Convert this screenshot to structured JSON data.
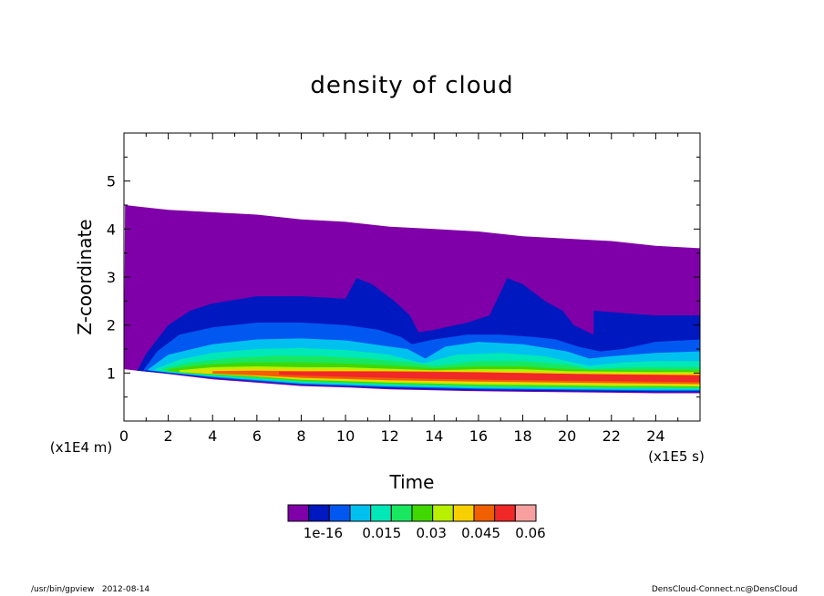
{
  "chart_data": {
    "type": "area",
    "title": "density of cloud",
    "xlabel": "Time",
    "ylabel": "Z-coordinate",
    "x_unit": "(x1E5 s)",
    "y_unit": "(x1E4 m)",
    "xlim": [
      0,
      26
    ],
    "ylim": [
      0,
      6
    ],
    "x_ticks": [
      0,
      2,
      4,
      6,
      8,
      10,
      12,
      14,
      16,
      18,
      20,
      22,
      24
    ],
    "y_ticks": [
      1,
      2,
      3,
      4,
      5
    ],
    "colorbar": {
      "colors": [
        "#7f00a8",
        "#0018c0",
        "#0058f0",
        "#00c0f0",
        "#00e8b8",
        "#18e860",
        "#40d800",
        "#b8f000",
        "#f8d000",
        "#f06000",
        "#f02828",
        "#f8a0a0"
      ],
      "labels": [
        "1e-16",
        "0.015",
        "0.03",
        "0.045",
        "0.06"
      ]
    },
    "bands": [
      {
        "level": 0,
        "top": [
          [
            0.0,
            1.08
          ],
          [
            0.05,
            4.5
          ],
          [
            1.0,
            4.45
          ],
          [
            2.0,
            4.4
          ],
          [
            4.0,
            4.35
          ],
          [
            6.0,
            4.3
          ],
          [
            8.0,
            4.2
          ],
          [
            10.0,
            4.15
          ],
          [
            12.0,
            4.05
          ],
          [
            14.0,
            4.0
          ],
          [
            16.0,
            3.95
          ],
          [
            18.0,
            3.85
          ],
          [
            20.0,
            3.8
          ],
          [
            22.0,
            3.75
          ],
          [
            24.0,
            3.65
          ],
          [
            26.0,
            3.6
          ]
        ],
        "bottom": [
          [
            0.6,
            1.05
          ],
          [
            2.0,
            0.98
          ],
          [
            4.0,
            0.87
          ],
          [
            6.0,
            0.8
          ],
          [
            8.0,
            0.73
          ],
          [
            10.0,
            0.7
          ],
          [
            12.0,
            0.66
          ],
          [
            14.0,
            0.64
          ],
          [
            16.0,
            0.62
          ],
          [
            18.0,
            0.61
          ],
          [
            20.0,
            0.6
          ],
          [
            22.0,
            0.59
          ],
          [
            24.0,
            0.58
          ],
          [
            26.0,
            0.58
          ]
        ]
      },
      {
        "level": 1,
        "top": [
          [
            0.6,
            1.05
          ],
          [
            1.0,
            1.4
          ],
          [
            2.0,
            2.0
          ],
          [
            3.0,
            2.3
          ],
          [
            4.0,
            2.45
          ],
          [
            6.0,
            2.6
          ],
          [
            8.0,
            2.6
          ],
          [
            10.0,
            2.55
          ],
          [
            10.5,
            2.98
          ],
          [
            11.2,
            2.85
          ],
          [
            12.2,
            2.5
          ],
          [
            12.9,
            2.2
          ],
          [
            13.3,
            1.85
          ],
          [
            14.0,
            1.9
          ],
          [
            15.5,
            2.05
          ],
          [
            16.5,
            2.2
          ],
          [
            17.3,
            2.98
          ],
          [
            18.0,
            2.85
          ],
          [
            19.0,
            2.5
          ],
          [
            19.8,
            2.3
          ],
          [
            20.3,
            2.0
          ],
          [
            21.2,
            1.8
          ],
          [
            21.2,
            2.3
          ],
          [
            22.5,
            2.25
          ],
          [
            24.0,
            2.2
          ],
          [
            26.0,
            2.2
          ]
        ],
        "bottom": [
          [
            0.6,
            1.05
          ],
          [
            2.0,
            0.99
          ],
          [
            4.0,
            0.89
          ],
          [
            6.0,
            0.82
          ],
          [
            8.0,
            0.75
          ],
          [
            10.0,
            0.72
          ],
          [
            12.0,
            0.68
          ],
          [
            14.0,
            0.66
          ],
          [
            16.0,
            0.64
          ],
          [
            18.0,
            0.63
          ],
          [
            20.0,
            0.62
          ],
          [
            22.0,
            0.61
          ],
          [
            24.0,
            0.6
          ],
          [
            26.0,
            0.6
          ]
        ]
      },
      {
        "level": 2,
        "top": [
          [
            0.9,
            1.08
          ],
          [
            1.5,
            1.45
          ],
          [
            2.5,
            1.8
          ],
          [
            4.0,
            1.95
          ],
          [
            6.0,
            2.05
          ],
          [
            8.0,
            2.05
          ],
          [
            10.0,
            2.0
          ],
          [
            11.5,
            1.9
          ],
          [
            12.5,
            1.75
          ],
          [
            13.0,
            1.6
          ],
          [
            14.0,
            1.7
          ],
          [
            15.5,
            1.8
          ],
          [
            17.0,
            1.8
          ],
          [
            18.5,
            1.75
          ],
          [
            19.5,
            1.7
          ],
          [
            20.5,
            1.55
          ],
          [
            21.5,
            1.45
          ],
          [
            22.5,
            1.5
          ],
          [
            24.0,
            1.65
          ],
          [
            26.0,
            1.7
          ]
        ],
        "bottom": [
          [
            0.9,
            1.06
          ],
          [
            2.0,
            1.0
          ],
          [
            4.0,
            0.9
          ],
          [
            6.0,
            0.83
          ],
          [
            8.0,
            0.76
          ],
          [
            10.0,
            0.73
          ],
          [
            12.0,
            0.7
          ],
          [
            14.0,
            0.68
          ],
          [
            16.0,
            0.66
          ],
          [
            18.0,
            0.65
          ],
          [
            20.0,
            0.64
          ],
          [
            22.0,
            0.63
          ],
          [
            24.0,
            0.62
          ],
          [
            26.0,
            0.62
          ]
        ]
      },
      {
        "level": 3,
        "top": [
          [
            1.1,
            1.08
          ],
          [
            2.0,
            1.38
          ],
          [
            4.0,
            1.6
          ],
          [
            6.0,
            1.7
          ],
          [
            8.0,
            1.72
          ],
          [
            10.0,
            1.68
          ],
          [
            12.0,
            1.55
          ],
          [
            12.8,
            1.5
          ],
          [
            13.6,
            1.3
          ],
          [
            14.5,
            1.55
          ],
          [
            16.0,
            1.65
          ],
          [
            18.0,
            1.6
          ],
          [
            20.0,
            1.45
          ],
          [
            21.0,
            1.3
          ],
          [
            22.0,
            1.35
          ],
          [
            24.0,
            1.42
          ],
          [
            26.0,
            1.45
          ]
        ],
        "bottom": [
          [
            1.1,
            1.06
          ],
          [
            2.0,
            1.01
          ],
          [
            4.0,
            0.92
          ],
          [
            6.0,
            0.85
          ],
          [
            8.0,
            0.78
          ],
          [
            10.0,
            0.75
          ],
          [
            12.0,
            0.72
          ],
          [
            14.0,
            0.7
          ],
          [
            16.0,
            0.68
          ],
          [
            18.0,
            0.67
          ],
          [
            20.0,
            0.66
          ],
          [
            22.0,
            0.65
          ],
          [
            24.0,
            0.64
          ],
          [
            26.0,
            0.64
          ]
        ]
      },
      {
        "level": 4,
        "top": [
          [
            1.4,
            1.08
          ],
          [
            2.5,
            1.28
          ],
          [
            4.0,
            1.42
          ],
          [
            6.0,
            1.5
          ],
          [
            8.0,
            1.52
          ],
          [
            10.0,
            1.48
          ],
          [
            12.0,
            1.38
          ],
          [
            13.5,
            1.2
          ],
          [
            15.0,
            1.38
          ],
          [
            17.0,
            1.42
          ],
          [
            19.0,
            1.35
          ],
          [
            21.0,
            1.15
          ],
          [
            22.5,
            1.22
          ],
          [
            24.0,
            1.25
          ],
          [
            26.0,
            1.25
          ]
        ],
        "bottom": [
          [
            1.4,
            1.06
          ],
          [
            2.0,
            1.02
          ],
          [
            4.0,
            0.93
          ],
          [
            6.0,
            0.87
          ],
          [
            8.0,
            0.8
          ],
          [
            10.0,
            0.77
          ],
          [
            12.0,
            0.74
          ],
          [
            14.0,
            0.72
          ],
          [
            16.0,
            0.7
          ],
          [
            18.0,
            0.69
          ],
          [
            20.0,
            0.68
          ],
          [
            22.0,
            0.67
          ],
          [
            24.0,
            0.67
          ],
          [
            26.0,
            0.66
          ]
        ]
      },
      {
        "level": 5,
        "top": [
          [
            1.7,
            1.08
          ],
          [
            3.0,
            1.22
          ],
          [
            5.0,
            1.32
          ],
          [
            7.0,
            1.36
          ],
          [
            9.0,
            1.35
          ],
          [
            11.0,
            1.3
          ],
          [
            13.0,
            1.22
          ],
          [
            14.0,
            1.15
          ],
          [
            16.0,
            1.25
          ],
          [
            18.0,
            1.25
          ],
          [
            20.0,
            1.18
          ],
          [
            21.0,
            1.08
          ],
          [
            23.0,
            1.12
          ],
          [
            26.0,
            1.12
          ]
        ],
        "bottom": [
          [
            1.7,
            1.06
          ],
          [
            2.5,
            1.02
          ],
          [
            4.0,
            0.95
          ],
          [
            6.0,
            0.89
          ],
          [
            8.0,
            0.82
          ],
          [
            10.0,
            0.79
          ],
          [
            12.0,
            0.76
          ],
          [
            14.0,
            0.74
          ],
          [
            16.0,
            0.72
          ],
          [
            18.0,
            0.71
          ],
          [
            20.0,
            0.7
          ],
          [
            22.0,
            0.69
          ],
          [
            24.0,
            0.69
          ],
          [
            26.0,
            0.68
          ]
        ]
      },
      {
        "level": 6,
        "top": [
          [
            2.0,
            1.08
          ],
          [
            3.5,
            1.17
          ],
          [
            5.5,
            1.22
          ],
          [
            8.0,
            1.22
          ],
          [
            10.0,
            1.2
          ],
          [
            12.0,
            1.16
          ],
          [
            14.0,
            1.1
          ],
          [
            16.0,
            1.14
          ],
          [
            18.0,
            1.14
          ],
          [
            20.0,
            1.08
          ],
          [
            22.0,
            1.06
          ],
          [
            24.0,
            1.06
          ],
          [
            26.0,
            1.06
          ]
        ],
        "bottom": [
          [
            2.0,
            1.04
          ],
          [
            3.0,
            0.99
          ],
          [
            4.0,
            0.97
          ],
          [
            6.0,
            0.91
          ],
          [
            8.0,
            0.84
          ],
          [
            10.0,
            0.81
          ],
          [
            12.0,
            0.78
          ],
          [
            14.0,
            0.76
          ],
          [
            16.0,
            0.74
          ],
          [
            18.0,
            0.73
          ],
          [
            20.0,
            0.72
          ],
          [
            22.0,
            0.71
          ],
          [
            24.0,
            0.71
          ],
          [
            26.0,
            0.7
          ]
        ]
      },
      {
        "level": 7,
        "top": [
          [
            2.5,
            1.06
          ],
          [
            4.0,
            1.12
          ],
          [
            6.0,
            1.14
          ],
          [
            8.0,
            1.12
          ],
          [
            10.0,
            1.12
          ],
          [
            14.0,
            1.06
          ],
          [
            16.0,
            1.08
          ],
          [
            18.0,
            1.08
          ],
          [
            20.0,
            1.04
          ],
          [
            24.0,
            1.02
          ],
          [
            26.0,
            1.02
          ]
        ],
        "bottom": [
          [
            2.5,
            1.02
          ],
          [
            4.0,
            0.98
          ],
          [
            6.0,
            0.93
          ],
          [
            8.0,
            0.86
          ],
          [
            10.0,
            0.83
          ],
          [
            12.0,
            0.8
          ],
          [
            14.0,
            0.78
          ],
          [
            16.0,
            0.76
          ],
          [
            18.0,
            0.75
          ],
          [
            20.0,
            0.74
          ],
          [
            22.0,
            0.73
          ],
          [
            24.0,
            0.73
          ],
          [
            26.0,
            0.72
          ]
        ]
      },
      {
        "level": 8,
        "top": [
          [
            3.0,
            1.04
          ],
          [
            5.0,
            1.08
          ],
          [
            7.0,
            1.08
          ],
          [
            9.0,
            1.07
          ],
          [
            12.0,
            1.06
          ],
          [
            16.0,
            1.04
          ],
          [
            20.0,
            1.0
          ],
          [
            26.0,
            0.99
          ]
        ],
        "bottom": [
          [
            3.0,
            1.01
          ],
          [
            5.0,
            0.96
          ],
          [
            7.0,
            0.9
          ],
          [
            9.0,
            0.86
          ],
          [
            12.0,
            0.82
          ],
          [
            16.0,
            0.79
          ],
          [
            20.0,
            0.77
          ],
          [
            24.0,
            0.75
          ],
          [
            26.0,
            0.74
          ]
        ]
      },
      {
        "level": 9,
        "top": [
          [
            4.0,
            1.04
          ],
          [
            6.0,
            1.05
          ],
          [
            8.0,
            1.04
          ],
          [
            12.0,
            1.04
          ],
          [
            16.0,
            1.02
          ],
          [
            20.0,
            0.98
          ],
          [
            26.0,
            0.96
          ]
        ],
        "bottom": [
          [
            4.0,
            0.99
          ],
          [
            6.0,
            0.95
          ],
          [
            8.0,
            0.9
          ],
          [
            12.0,
            0.85
          ],
          [
            16.0,
            0.82
          ],
          [
            20.0,
            0.8
          ],
          [
            26.0,
            0.77
          ]
        ]
      },
      {
        "level": 10,
        "top": [
          [
            7.0,
            1.03
          ],
          [
            10.0,
            1.03
          ],
          [
            14.0,
            1.02
          ],
          [
            18.0,
            1.0
          ],
          [
            22.0,
            0.97
          ],
          [
            26.0,
            0.95
          ]
        ],
        "bottom": [
          [
            7.0,
            0.96
          ],
          [
            10.0,
            0.92
          ],
          [
            14.0,
            0.88
          ],
          [
            18.0,
            0.85
          ],
          [
            22.0,
            0.83
          ],
          [
            26.0,
            0.81
          ]
        ]
      }
    ]
  },
  "footer": {
    "left": "/usr/bin/gpview   2012-08-14",
    "right": "DensCloud-Connect.nc@DensCloud"
  }
}
